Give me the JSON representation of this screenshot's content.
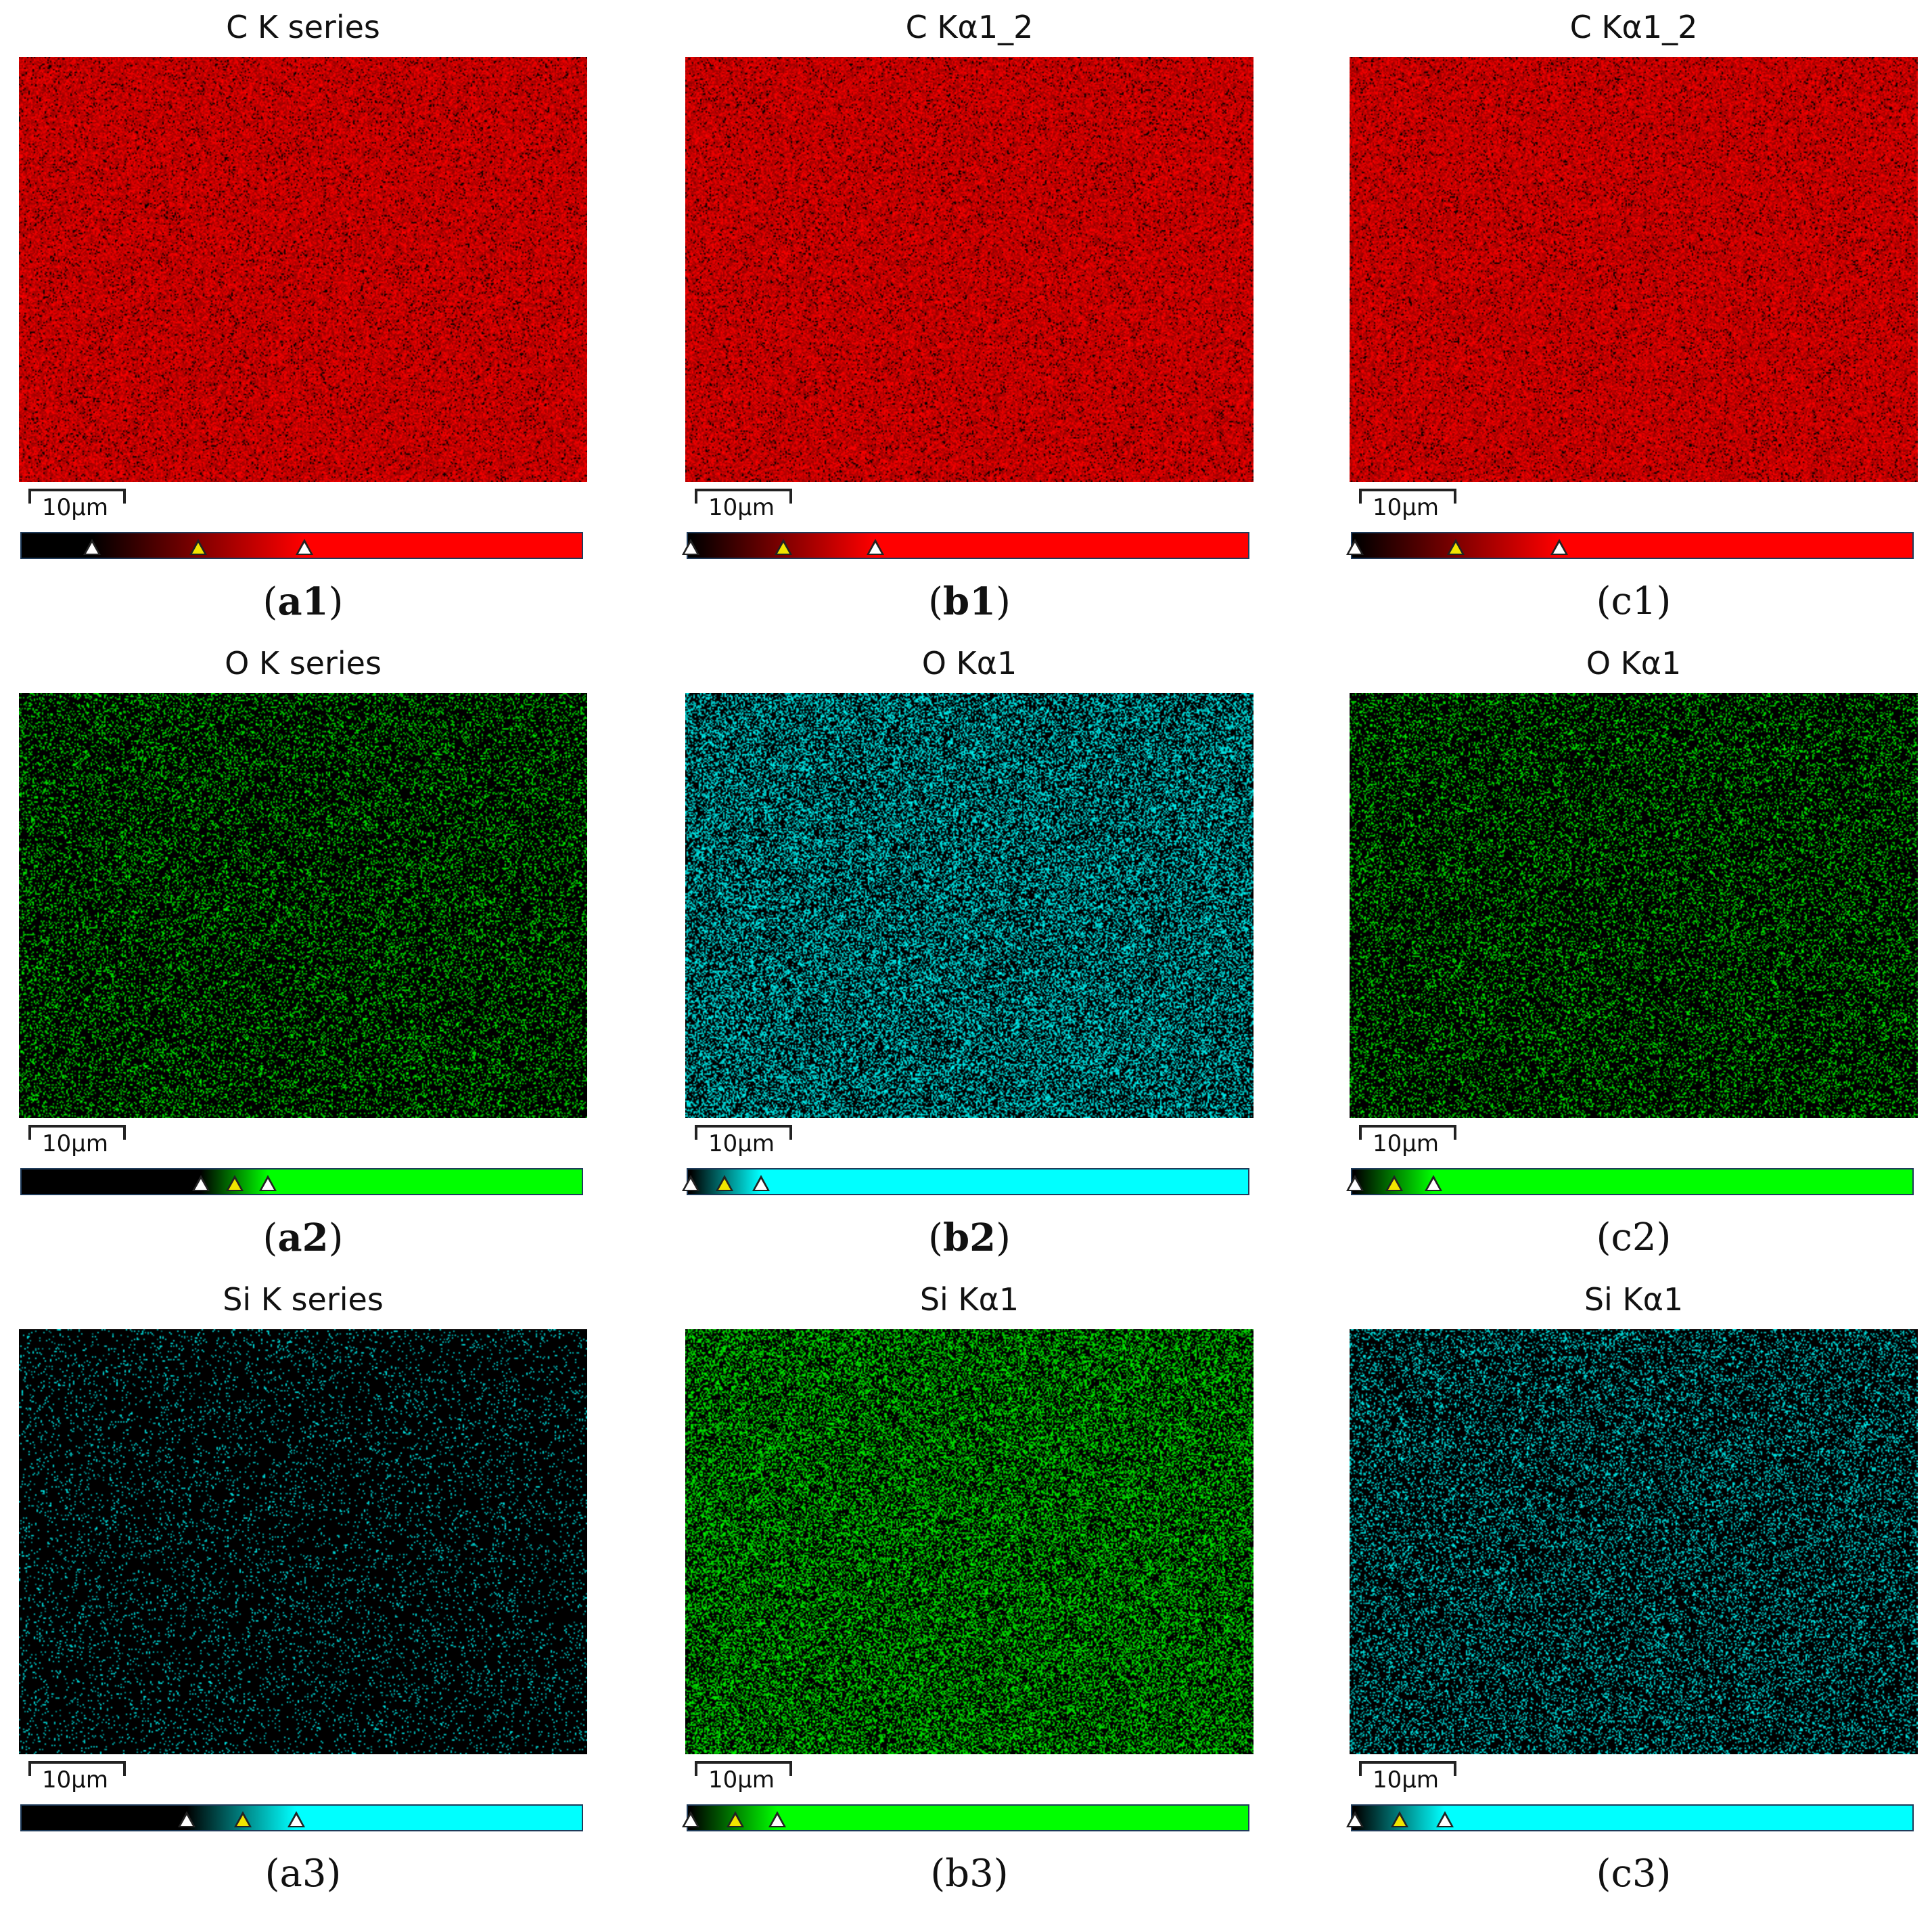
{
  "scale_label": "10μm",
  "panels": [
    {
      "id": "a1",
      "title": "C K series",
      "caption_label": "a1",
      "bold": true,
      "color": "#ff0000",
      "markers": [
        0.125,
        0.315,
        0.505
      ]
    },
    {
      "id": "b1",
      "title": "C Kα1_2",
      "caption_label": "b1",
      "bold": true,
      "color": "#ff0000",
      "markers": [
        0.005,
        0.17,
        0.335
      ]
    },
    {
      "id": "c1",
      "title": "C Kα1_2",
      "caption_label": "c1",
      "bold": false,
      "color": "#ff0000",
      "markers": [
        0.005,
        0.185,
        0.37
      ]
    },
    {
      "id": "a2",
      "title": "O K series",
      "caption_label": "a2",
      "bold": true,
      "color": "#00ff00",
      "markers": [
        0.32,
        0.38,
        0.44
      ]
    },
    {
      "id": "b2",
      "title": "O Kα1",
      "caption_label": "b2",
      "bold": true,
      "color": "#00ffff",
      "markers": [
        0.005,
        0.065,
        0.13
      ]
    },
    {
      "id": "c2",
      "title": "O Kα1",
      "caption_label": "c2",
      "bold": false,
      "color": "#00ff00",
      "markers": [
        0.005,
        0.075,
        0.145
      ]
    },
    {
      "id": "a3",
      "title": "Si K series",
      "caption_label": "a3",
      "bold": false,
      "color": "#00ffff",
      "markers": [
        0.295,
        0.395,
        0.49
      ]
    },
    {
      "id": "b3",
      "title": "Si Kα1",
      "caption_label": "b3",
      "bold": false,
      "color": "#00ff00",
      "markers": [
        0.005,
        0.085,
        0.16
      ]
    },
    {
      "id": "c3",
      "title": "Si Kα1",
      "caption_label": "c3",
      "bold": false,
      "color": "#00ffff",
      "markers": [
        0.005,
        0.085,
        0.165
      ]
    }
  ]
}
